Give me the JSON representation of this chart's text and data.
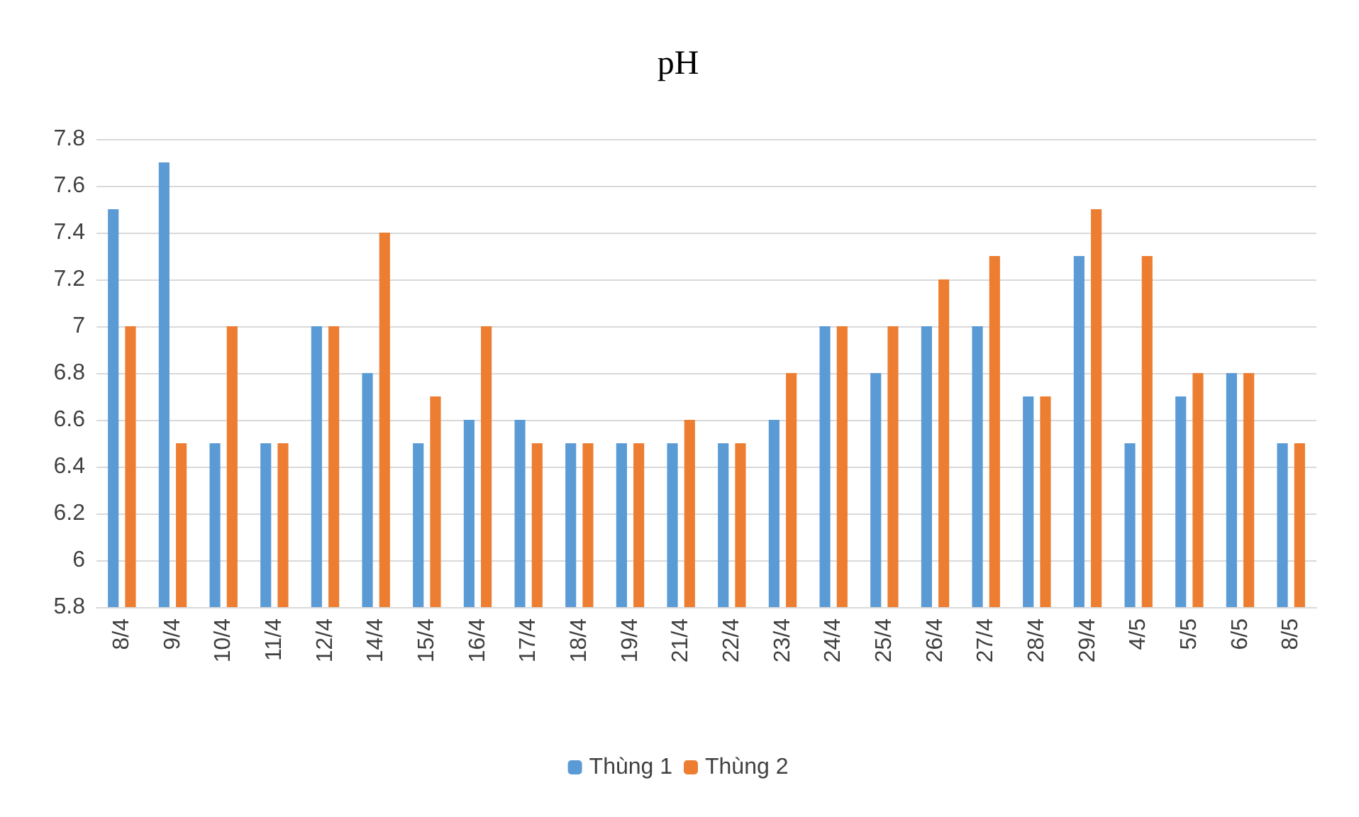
{
  "chart_data": {
    "type": "bar",
    "title": "pH",
    "categories": [
      "8/4",
      "9/4",
      "10/4",
      "11/4",
      "12/4",
      "14/4",
      "15/4",
      "16/4",
      "17/4",
      "18/4",
      "19/4",
      "21/4",
      "22/4",
      "23/4",
      "24/4",
      "25/4",
      "26/4",
      "27/4",
      "28/4",
      "29/4",
      "4/5",
      "5/5",
      "6/5",
      "8/5"
    ],
    "series": [
      {
        "name": "Thùng 1",
        "color": "#5b9bd5",
        "values": [
          7.5,
          7.7,
          6.5,
          6.5,
          7.0,
          6.8,
          6.5,
          6.6,
          6.6,
          6.5,
          6.5,
          6.5,
          6.5,
          6.6,
          7.0,
          6.8,
          7.0,
          7.0,
          6.7,
          7.3,
          6.5,
          6.7,
          6.8,
          6.5
        ]
      },
      {
        "name": "Thùng 2",
        "color": "#ed7d31",
        "values": [
          7.0,
          6.5,
          7.0,
          6.5,
          7.0,
          7.4,
          6.7,
          7.0,
          6.5,
          6.5,
          6.5,
          6.6,
          6.5,
          6.8,
          7.0,
          7.0,
          7.2,
          7.3,
          6.7,
          7.5,
          7.3,
          6.8,
          6.8,
          6.5
        ]
      }
    ],
    "ylim": [
      5.8,
      7.8
    ],
    "yticks": [
      5.8,
      6,
      6.2,
      6.4,
      6.6,
      6.8,
      7,
      7.2,
      7.4,
      7.6,
      7.8
    ],
    "grid": "y",
    "legend": "bottom"
  }
}
